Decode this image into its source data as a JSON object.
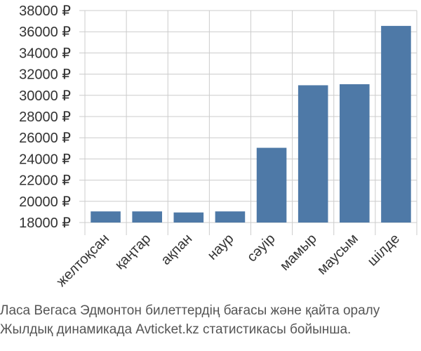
{
  "chart_data": {
    "type": "bar",
    "categories": [
      "желтоқсан",
      "қаңтар",
      "ақпан",
      "наур",
      "сәуір",
      "мамыр",
      "маусым",
      "шілде"
    ],
    "values": [
      19050,
      19050,
      18950,
      19050,
      25050,
      30950,
      31050,
      36550
    ],
    "ylim": [
      18000,
      38000
    ],
    "ytick_step": 2000,
    "currency_suffix": " ₽",
    "grid": true,
    "bar_color": "#4e79a7",
    "grid_color": "#cccccc"
  },
  "caption": {
    "line1": "Ласа Вегаса Эдмонтон билеттердің бағасы және қайта оралу",
    "line2": "Жылдық динамикада Avticket.kz статистикасы бойынша."
  }
}
